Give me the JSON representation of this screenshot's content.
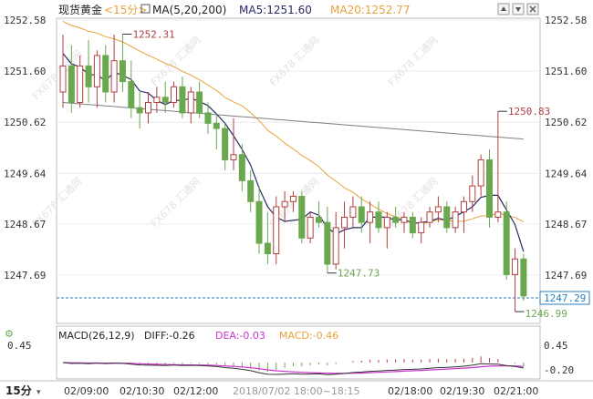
{
  "header": {
    "symbol": "现货黄金",
    "period_tag": "<15分>",
    "ma_label": "MA(5,20,200)",
    "ma5_text": "MA5:1251.60",
    "ma20_text": "MA20:1252.77"
  },
  "toolbar": {
    "icons": [
      "up-icon",
      "down-icon",
      "close-icon",
      "expand-icon",
      "settings-icon"
    ]
  },
  "colors": {
    "up_candle": "#b04040",
    "down_candle": "#6aa84f",
    "ma5": "#2a2a66",
    "ma20": "#e8a23c",
    "ma200": "#808080",
    "dif": "#333333",
    "dea": "#cc33cc",
    "last_price": "#2a7fbf"
  },
  "price_axis": {
    "ticks": [
      "1252.58",
      "1251.60",
      "1250.62",
      "1249.64",
      "1248.67",
      "1247.69"
    ],
    "last_price": "1247.29"
  },
  "annotations": {
    "high1": "1252.31",
    "high2": "1250.83",
    "low1": "1247.73",
    "low2": "1246.99"
  },
  "macd": {
    "label": "MACD(26,12,9)",
    "diff": "DIFF:-0.26",
    "dea": "DEA:-0.03",
    "macd_val": "MACD:-0.46",
    "scale_top": "0.45",
    "scale_bottom": "-0.20"
  },
  "time_axis": {
    "period": "15分",
    "labels": [
      "02/09:00",
      "02/10:30",
      "02/12:00",
      "02/13:30",
      "2018/07/02 18:00~18:15",
      "02/18:00",
      "02/19:30",
      "02/21:00"
    ]
  },
  "watermark": "FX678 汇通网",
  "chart_data": {
    "type": "candlestick",
    "ylim": [
      1246.99,
      1252.58
    ],
    "candles": [
      {
        "o": 1251.2,
        "h": 1252.3,
        "l": 1250.9,
        "c": 1251.7
      },
      {
        "o": 1251.7,
        "h": 1252.1,
        "l": 1250.8,
        "c": 1251.0
      },
      {
        "o": 1251.0,
        "h": 1251.9,
        "l": 1250.9,
        "c": 1251.7
      },
      {
        "o": 1251.7,
        "h": 1252.2,
        "l": 1251.0,
        "c": 1251.3
      },
      {
        "o": 1251.3,
        "h": 1252.0,
        "l": 1250.9,
        "c": 1251.9
      },
      {
        "o": 1251.9,
        "h": 1252.1,
        "l": 1251.0,
        "c": 1251.2
      },
      {
        "o": 1251.2,
        "h": 1252.3,
        "l": 1251.0,
        "c": 1251.8
      },
      {
        "o": 1251.8,
        "h": 1252.31,
        "l": 1251.2,
        "c": 1251.4
      },
      {
        "o": 1251.4,
        "h": 1251.8,
        "l": 1250.7,
        "c": 1250.9
      },
      {
        "o": 1250.9,
        "h": 1251.2,
        "l": 1250.5,
        "c": 1250.8
      },
      {
        "o": 1250.8,
        "h": 1251.2,
        "l": 1250.6,
        "c": 1251.0
      },
      {
        "o": 1251.0,
        "h": 1251.3,
        "l": 1250.8,
        "c": 1251.1
      },
      {
        "o": 1251.1,
        "h": 1251.4,
        "l": 1250.8,
        "c": 1251.0
      },
      {
        "o": 1251.0,
        "h": 1251.4,
        "l": 1250.9,
        "c": 1251.3
      },
      {
        "o": 1251.3,
        "h": 1251.5,
        "l": 1250.7,
        "c": 1250.8
      },
      {
        "o": 1250.8,
        "h": 1251.3,
        "l": 1250.6,
        "c": 1251.2
      },
      {
        "o": 1251.2,
        "h": 1251.4,
        "l": 1250.7,
        "c": 1250.8
      },
      {
        "o": 1250.8,
        "h": 1251.0,
        "l": 1250.4,
        "c": 1250.6
      },
      {
        "o": 1250.6,
        "h": 1250.8,
        "l": 1250.1,
        "c": 1250.5
      },
      {
        "o": 1250.5,
        "h": 1250.6,
        "l": 1249.7,
        "c": 1249.9
      },
      {
        "o": 1249.9,
        "h": 1250.7,
        "l": 1249.7,
        "c": 1250.0
      },
      {
        "o": 1250.0,
        "h": 1250.2,
        "l": 1249.3,
        "c": 1249.5
      },
      {
        "o": 1249.5,
        "h": 1249.7,
        "l": 1248.9,
        "c": 1249.1
      },
      {
        "o": 1249.1,
        "h": 1249.4,
        "l": 1248.1,
        "c": 1248.3
      },
      {
        "o": 1248.3,
        "h": 1248.9,
        "l": 1247.9,
        "c": 1248.1
      },
      {
        "o": 1248.1,
        "h": 1249.2,
        "l": 1247.9,
        "c": 1249.0
      },
      {
        "o": 1249.0,
        "h": 1249.3,
        "l": 1248.7,
        "c": 1249.1
      },
      {
        "o": 1249.1,
        "h": 1249.3,
        "l": 1248.9,
        "c": 1249.2
      },
      {
        "o": 1249.2,
        "h": 1249.3,
        "l": 1248.3,
        "c": 1248.4
      },
      {
        "o": 1248.4,
        "h": 1248.9,
        "l": 1248.3,
        "c": 1248.8
      },
      {
        "o": 1248.8,
        "h": 1249.1,
        "l": 1248.6,
        "c": 1248.7
      },
      {
        "o": 1248.7,
        "h": 1249.0,
        "l": 1247.73,
        "c": 1247.9
      },
      {
        "o": 1247.9,
        "h": 1248.9,
        "l": 1247.8,
        "c": 1248.6
      },
      {
        "o": 1248.6,
        "h": 1249.1,
        "l": 1248.2,
        "c": 1248.8
      },
      {
        "o": 1248.8,
        "h": 1249.2,
        "l": 1248.6,
        "c": 1249.0
      },
      {
        "o": 1249.0,
        "h": 1249.2,
        "l": 1248.5,
        "c": 1248.7
      },
      {
        "o": 1248.7,
        "h": 1249.1,
        "l": 1248.3,
        "c": 1248.9
      },
      {
        "o": 1248.9,
        "h": 1249.1,
        "l": 1248.5,
        "c": 1248.6
      },
      {
        "o": 1248.6,
        "h": 1248.9,
        "l": 1248.2,
        "c": 1248.8
      },
      {
        "o": 1248.8,
        "h": 1249.0,
        "l": 1248.6,
        "c": 1248.7
      },
      {
        "o": 1248.7,
        "h": 1248.9,
        "l": 1248.5,
        "c": 1248.8
      },
      {
        "o": 1248.8,
        "h": 1248.9,
        "l": 1248.4,
        "c": 1248.5
      },
      {
        "o": 1248.5,
        "h": 1248.8,
        "l": 1248.3,
        "c": 1248.7
      },
      {
        "o": 1248.7,
        "h": 1249.0,
        "l": 1248.6,
        "c": 1248.9
      },
      {
        "o": 1248.9,
        "h": 1249.2,
        "l": 1248.7,
        "c": 1249.0
      },
      {
        "o": 1249.0,
        "h": 1249.1,
        "l": 1248.5,
        "c": 1248.6
      },
      {
        "o": 1248.6,
        "h": 1249.0,
        "l": 1248.5,
        "c": 1248.9
      },
      {
        "o": 1248.9,
        "h": 1249.2,
        "l": 1248.5,
        "c": 1249.1
      },
      {
        "o": 1249.1,
        "h": 1249.6,
        "l": 1248.9,
        "c": 1249.4
      },
      {
        "o": 1249.4,
        "h": 1250.0,
        "l": 1249.2,
        "c": 1249.9
      },
      {
        "o": 1249.9,
        "h": 1250.1,
        "l": 1248.6,
        "c": 1248.8
      },
      {
        "o": 1248.8,
        "h": 1250.83,
        "l": 1248.7,
        "c": 1248.9
      },
      {
        "o": 1248.9,
        "h": 1249.1,
        "l": 1247.6,
        "c": 1247.7
      },
      {
        "o": 1247.7,
        "h": 1248.2,
        "l": 1246.99,
        "c": 1248.0
      },
      {
        "o": 1248.0,
        "h": 1248.1,
        "l": 1247.2,
        "c": 1247.29
      }
    ]
  }
}
